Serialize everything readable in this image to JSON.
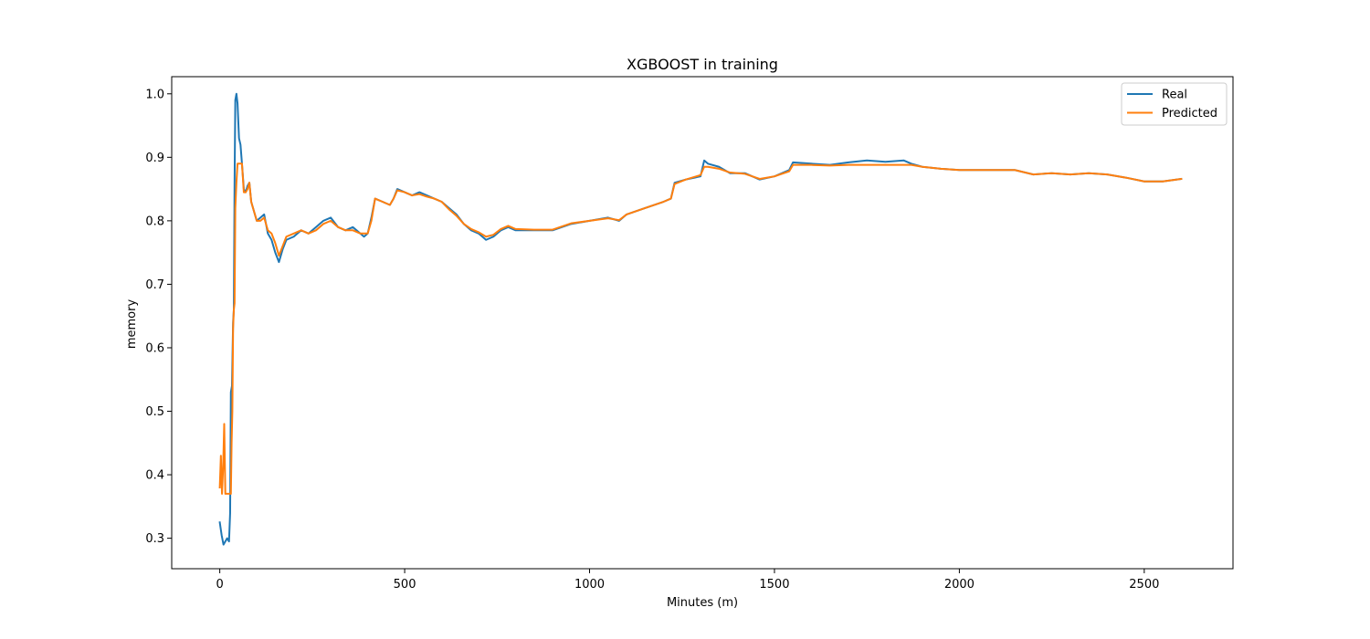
{
  "chart_data": {
    "type": "line",
    "title": "XGBOOST in training",
    "xlabel": "Minutes (m)",
    "ylabel": "memory",
    "xlim": [
      -130,
      2740
    ],
    "ylim": [
      0.252,
      1.027
    ],
    "x_ticks": [
      0,
      500,
      1000,
      1500,
      2000,
      2500
    ],
    "x_tick_labels": [
      "0",
      "500",
      "1000",
      "1500",
      "2000",
      "2500"
    ],
    "y_ticks": [
      0.3,
      0.4,
      0.5,
      0.6,
      0.7,
      0.8,
      0.9,
      1.0
    ],
    "y_tick_labels": [
      "0.3",
      "0.4",
      "0.5",
      "0.6",
      "0.7",
      "0.8",
      "0.9",
      "1.0"
    ],
    "grid": false,
    "legend_position": "top-right",
    "series": [
      {
        "name": "Real",
        "color": "#1f77b4",
        "points": [
          [
            0,
            0.325
          ],
          [
            5,
            0.305
          ],
          [
            10,
            0.29
          ],
          [
            15,
            0.295
          ],
          [
            20,
            0.3
          ],
          [
            25,
            0.295
          ],
          [
            28,
            0.34
          ],
          [
            30,
            0.53
          ],
          [
            33,
            0.54
          ],
          [
            36,
            0.64
          ],
          [
            38,
            0.66
          ],
          [
            40,
            0.86
          ],
          [
            42,
            0.99
          ],
          [
            45,
            1.0
          ],
          [
            48,
            0.985
          ],
          [
            52,
            0.93
          ],
          [
            56,
            0.92
          ],
          [
            60,
            0.89
          ],
          [
            65,
            0.85
          ],
          [
            70,
            0.845
          ],
          [
            75,
            0.855
          ],
          [
            80,
            0.86
          ],
          [
            85,
            0.83
          ],
          [
            90,
            0.82
          ],
          [
            100,
            0.8
          ],
          [
            110,
            0.805
          ],
          [
            120,
            0.81
          ],
          [
            130,
            0.78
          ],
          [
            140,
            0.77
          ],
          [
            150,
            0.75
          ],
          [
            160,
            0.735
          ],
          [
            170,
            0.755
          ],
          [
            180,
            0.77
          ],
          [
            200,
            0.775
          ],
          [
            220,
            0.785
          ],
          [
            240,
            0.78
          ],
          [
            260,
            0.79
          ],
          [
            280,
            0.8
          ],
          [
            300,
            0.805
          ],
          [
            320,
            0.79
          ],
          [
            340,
            0.785
          ],
          [
            360,
            0.79
          ],
          [
            380,
            0.78
          ],
          [
            390,
            0.775
          ],
          [
            400,
            0.78
          ],
          [
            410,
            0.805
          ],
          [
            420,
            0.835
          ],
          [
            440,
            0.83
          ],
          [
            460,
            0.825
          ],
          [
            470,
            0.835
          ],
          [
            480,
            0.85
          ],
          [
            500,
            0.845
          ],
          [
            520,
            0.84
          ],
          [
            540,
            0.845
          ],
          [
            560,
            0.84
          ],
          [
            580,
            0.835
          ],
          [
            600,
            0.83
          ],
          [
            620,
            0.82
          ],
          [
            640,
            0.81
          ],
          [
            660,
            0.795
          ],
          [
            680,
            0.785
          ],
          [
            700,
            0.78
          ],
          [
            720,
            0.77
          ],
          [
            740,
            0.775
          ],
          [
            760,
            0.785
          ],
          [
            780,
            0.79
          ],
          [
            800,
            0.785
          ],
          [
            850,
            0.785
          ],
          [
            900,
            0.785
          ],
          [
            950,
            0.795
          ],
          [
            1000,
            0.8
          ],
          [
            1050,
            0.805
          ],
          [
            1080,
            0.8
          ],
          [
            1100,
            0.81
          ],
          [
            1150,
            0.82
          ],
          [
            1200,
            0.83
          ],
          [
            1220,
            0.835
          ],
          [
            1230,
            0.86
          ],
          [
            1260,
            0.865
          ],
          [
            1300,
            0.87
          ],
          [
            1310,
            0.895
          ],
          [
            1320,
            0.89
          ],
          [
            1350,
            0.885
          ],
          [
            1380,
            0.875
          ],
          [
            1420,
            0.875
          ],
          [
            1460,
            0.865
          ],
          [
            1500,
            0.87
          ],
          [
            1540,
            0.88
          ],
          [
            1550,
            0.892
          ],
          [
            1600,
            0.89
          ],
          [
            1650,
            0.888
          ],
          [
            1700,
            0.892
          ],
          [
            1750,
            0.895
          ],
          [
            1800,
            0.893
          ],
          [
            1850,
            0.895
          ],
          [
            1870,
            0.89
          ],
          [
            1900,
            0.885
          ],
          [
            1950,
            0.882
          ],
          [
            2000,
            0.88
          ],
          [
            2050,
            0.88
          ],
          [
            2100,
            0.88
          ],
          [
            2150,
            0.88
          ],
          [
            2200,
            0.873
          ],
          [
            2250,
            0.875
          ],
          [
            2300,
            0.873
          ],
          [
            2350,
            0.875
          ],
          [
            2400,
            0.873
          ],
          [
            2450,
            0.868
          ],
          [
            2500,
            0.862
          ],
          [
            2550,
            0.862
          ],
          [
            2600,
            0.866
          ]
        ]
      },
      {
        "name": "Predicted",
        "color": "#ff7f0e",
        "points": [
          [
            0,
            0.38
          ],
          [
            3,
            0.43
          ],
          [
            6,
            0.37
          ],
          [
            9,
            0.41
          ],
          [
            12,
            0.48
          ],
          [
            15,
            0.37
          ],
          [
            20,
            0.37
          ],
          [
            25,
            0.37
          ],
          [
            30,
            0.37
          ],
          [
            32,
            0.45
          ],
          [
            34,
            0.5
          ],
          [
            36,
            0.63
          ],
          [
            38,
            0.66
          ],
          [
            40,
            0.67
          ],
          [
            42,
            0.82
          ],
          [
            45,
            0.86
          ],
          [
            48,
            0.89
          ],
          [
            55,
            0.89
          ],
          [
            60,
            0.89
          ],
          [
            65,
            0.845
          ],
          [
            70,
            0.845
          ],
          [
            75,
            0.85
          ],
          [
            80,
            0.86
          ],
          [
            85,
            0.83
          ],
          [
            90,
            0.82
          ],
          [
            100,
            0.8
          ],
          [
            110,
            0.8
          ],
          [
            120,
            0.805
          ],
          [
            130,
            0.785
          ],
          [
            140,
            0.78
          ],
          [
            150,
            0.765
          ],
          [
            160,
            0.745
          ],
          [
            170,
            0.76
          ],
          [
            180,
            0.775
          ],
          [
            200,
            0.78
          ],
          [
            220,
            0.785
          ],
          [
            240,
            0.78
          ],
          [
            260,
            0.785
          ],
          [
            280,
            0.795
          ],
          [
            300,
            0.8
          ],
          [
            320,
            0.79
          ],
          [
            340,
            0.785
          ],
          [
            360,
            0.785
          ],
          [
            380,
            0.78
          ],
          [
            400,
            0.78
          ],
          [
            410,
            0.8
          ],
          [
            420,
            0.835
          ],
          [
            440,
            0.83
          ],
          [
            460,
            0.825
          ],
          [
            470,
            0.835
          ],
          [
            480,
            0.848
          ],
          [
            500,
            0.845
          ],
          [
            520,
            0.84
          ],
          [
            540,
            0.842
          ],
          [
            560,
            0.838
          ],
          [
            580,
            0.835
          ],
          [
            600,
            0.83
          ],
          [
            620,
            0.818
          ],
          [
            640,
            0.808
          ],
          [
            660,
            0.795
          ],
          [
            680,
            0.787
          ],
          [
            700,
            0.782
          ],
          [
            720,
            0.775
          ],
          [
            740,
            0.778
          ],
          [
            760,
            0.787
          ],
          [
            780,
            0.792
          ],
          [
            800,
            0.787
          ],
          [
            850,
            0.786
          ],
          [
            900,
            0.786
          ],
          [
            950,
            0.796
          ],
          [
            1000,
            0.8
          ],
          [
            1050,
            0.804
          ],
          [
            1080,
            0.801
          ],
          [
            1100,
            0.81
          ],
          [
            1150,
            0.82
          ],
          [
            1200,
            0.83
          ],
          [
            1220,
            0.835
          ],
          [
            1230,
            0.858
          ],
          [
            1260,
            0.865
          ],
          [
            1300,
            0.872
          ],
          [
            1310,
            0.885
          ],
          [
            1320,
            0.885
          ],
          [
            1350,
            0.882
          ],
          [
            1380,
            0.876
          ],
          [
            1420,
            0.874
          ],
          [
            1460,
            0.866
          ],
          [
            1500,
            0.87
          ],
          [
            1540,
            0.878
          ],
          [
            1550,
            0.888
          ],
          [
            1600,
            0.888
          ],
          [
            1650,
            0.887
          ],
          [
            1700,
            0.888
          ],
          [
            1750,
            0.888
          ],
          [
            1800,
            0.888
          ],
          [
            1850,
            0.888
          ],
          [
            1870,
            0.888
          ],
          [
            1900,
            0.885
          ],
          [
            1950,
            0.882
          ],
          [
            2000,
            0.88
          ],
          [
            2050,
            0.88
          ],
          [
            2100,
            0.88
          ],
          [
            2150,
            0.88
          ],
          [
            2200,
            0.873
          ],
          [
            2250,
            0.875
          ],
          [
            2300,
            0.873
          ],
          [
            2350,
            0.875
          ],
          [
            2400,
            0.873
          ],
          [
            2450,
            0.868
          ],
          [
            2500,
            0.862
          ],
          [
            2550,
            0.862
          ],
          [
            2600,
            0.866
          ]
        ]
      }
    ]
  }
}
